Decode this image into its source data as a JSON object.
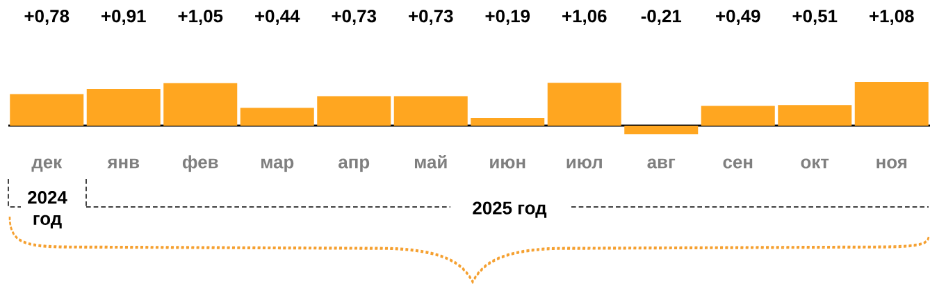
{
  "chart_data": {
    "type": "bar",
    "color": "#ffa620",
    "categories": [
      "дек",
      "янв",
      "фев",
      "мар",
      "апр",
      "май",
      "июн",
      "июл",
      "авг",
      "сен",
      "окт",
      "ноя"
    ],
    "values": [
      0.78,
      0.91,
      1.05,
      0.44,
      0.73,
      0.73,
      0.19,
      1.06,
      -0.21,
      0.49,
      0.51,
      1.08
    ],
    "value_labels": [
      "+0,78",
      "+0,91",
      "+1,05",
      "+0,44",
      "+0,73",
      "+0,73",
      "+0,19",
      "+1,06",
      "-0,21",
      "+0,49",
      "+0,51",
      "+1,08"
    ],
    "annotations": [
      "2024 год",
      "2025 год"
    ]
  }
}
